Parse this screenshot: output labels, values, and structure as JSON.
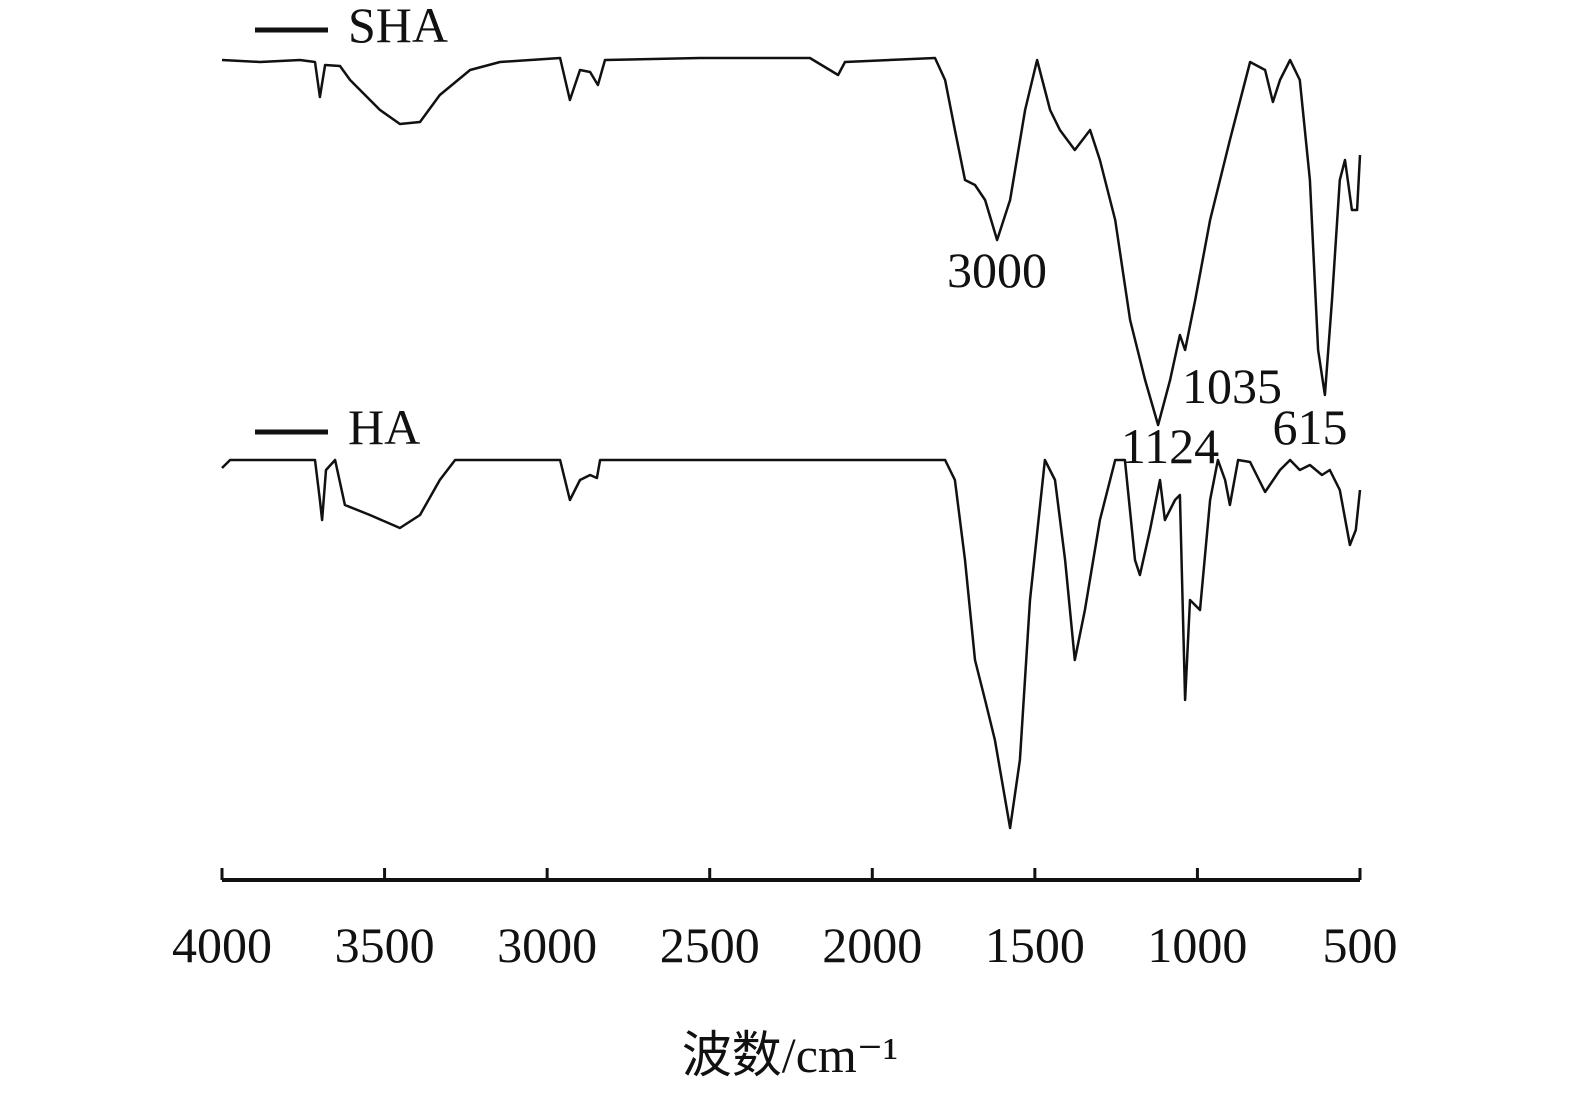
{
  "chart_data": {
    "type": "line",
    "x_label": "波数/cm⁻¹",
    "xlim": [
      4000,
      500
    ],
    "xticks": [
      4000,
      3500,
      3000,
      2500,
      2000,
      1500,
      1000,
      500
    ],
    "ylim": [
      0,
      84
    ],
    "annotations": [
      "3000",
      "1035",
      "1124",
      "615"
    ],
    "series": [
      {
        "name": "SHA",
        "color": "#111111",
        "x": [
          4000,
          3883,
          3760,
          3714,
          3699,
          3683,
          3637,
          3606,
          3514,
          3453,
          3391,
          3330,
          3237,
          3145,
          2960,
          2930,
          2899,
          2868,
          2844,
          2822,
          2530,
          2192,
          2105,
          2084,
          1807,
          1776,
          1746,
          1715,
          1684,
          1653,
          1616,
          1576,
          1530,
          1493,
          1453,
          1423,
          1377,
          1330,
          1300,
          1253,
          1207,
          1161,
          1121,
          1084,
          1054,
          1038,
          1007,
          961,
          900,
          838,
          792,
          768,
          746,
          715,
          685,
          654,
          629,
          608,
          586,
          562,
          546,
          525,
          509,
          500
        ],
        "values": [
          82,
          81.8,
          82,
          81.8,
          78.3,
          81.5,
          81.4,
          80,
          77,
          75.6,
          75.8,
          78.5,
          81,
          81.8,
          82.2,
          78,
          81,
          80.8,
          79.5,
          82,
          82.2,
          82.2,
          80.5,
          81.8,
          82.2,
          80,
          75,
          70,
          69.5,
          68,
          64,
          68,
          77,
          82,
          77,
          75,
          73,
          75,
          72,
          66,
          56,
          50,
          45.5,
          50,
          54.5,
          53,
          58,
          66,
          74,
          81.8,
          81,
          77.8,
          80,
          82,
          80,
          70,
          53,
          48.5,
          58,
          70,
          72,
          67,
          67,
          72.5
        ]
      },
      {
        "name": "HA",
        "color": "#111111",
        "x": [
          4000,
          3975,
          3714,
          3699,
          3692,
          3680,
          3652,
          3622,
          3545,
          3453,
          3391,
          3330,
          3283,
          2960,
          2930,
          2899,
          2868,
          2847,
          2837,
          1776,
          1746,
          1715,
          1684,
          1653,
          1623,
          1576,
          1546,
          1515,
          1469,
          1438,
          1407,
          1377,
          1346,
          1300,
          1253,
          1223,
          1192,
          1177,
          1146,
          1115,
          1100,
          1069,
          1054,
          1038,
          1023,
          992,
          961,
          937,
          915,
          900,
          875,
          838,
          792,
          746,
          715,
          685,
          654,
          617,
          593,
          562,
          531,
          513,
          500
        ],
        "values": [
          41.2,
          42,
          42,
          38,
          36,
          41,
          42,
          37.5,
          36.5,
          35.2,
          36.5,
          40,
          42,
          42,
          38,
          40,
          40.5,
          40.2,
          42,
          42,
          40,
          32,
          22,
          18,
          14,
          5.2,
          12,
          28,
          42,
          40,
          32,
          22,
          27,
          36,
          42,
          42,
          32,
          30.5,
          35,
          40,
          36,
          38,
          38.5,
          18,
          28,
          27,
          38,
          42,
          40,
          37.5,
          42,
          41.8,
          38.8,
          41,
          42,
          41,
          41.5,
          40.5,
          41,
          39,
          33.5,
          35,
          39
        ]
      }
    ]
  }
}
